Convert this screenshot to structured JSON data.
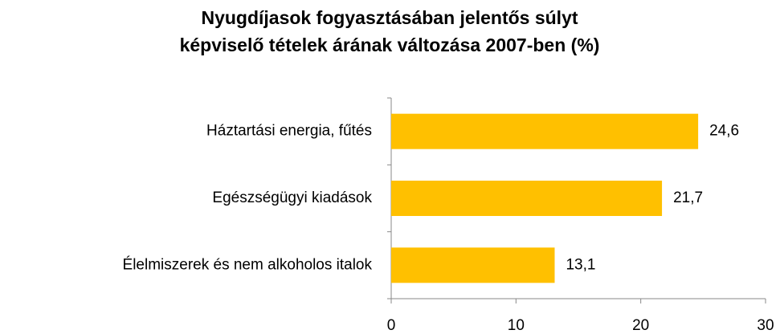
{
  "chart_data": {
    "type": "barh",
    "title": [
      "Nyugdíjasok fogyasztásában jelentős súlyt",
      "képviselő tételek árának változása 2007-ben (%)"
    ],
    "categories": [
      "Háztartási energia, fűtés",
      "Egészségügyi kiadások",
      "Élelmiszerek és nem alkoholos italok"
    ],
    "values": [
      24.6,
      21.7,
      13.1
    ],
    "value_labels": [
      "24,6",
      "21,7",
      "13,1"
    ],
    "color": "#ffc000",
    "xlim": [
      0,
      30
    ],
    "xticks": [
      0,
      10,
      20,
      30
    ]
  }
}
